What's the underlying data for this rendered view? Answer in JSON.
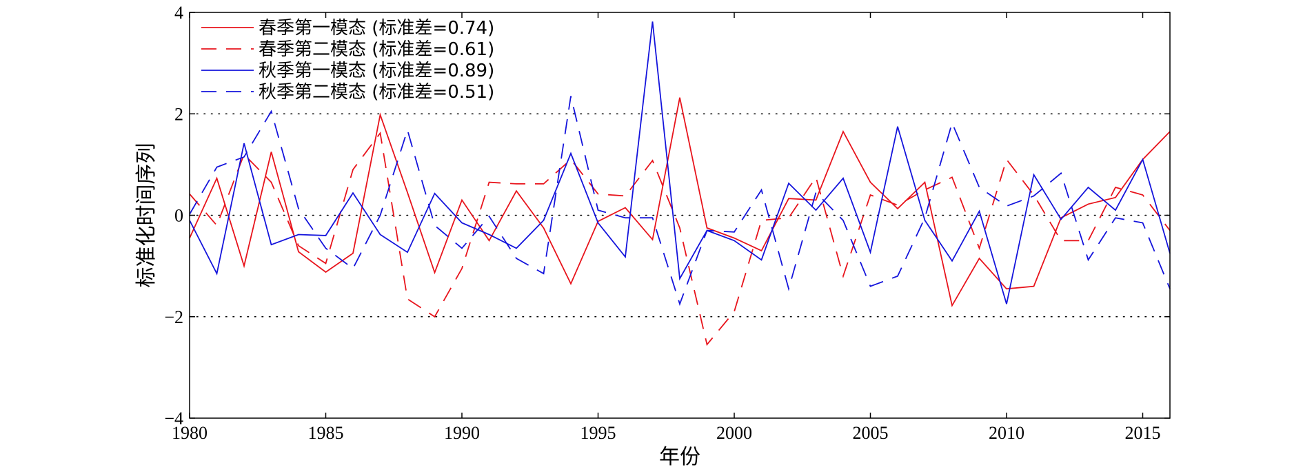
{
  "chart_data": {
    "type": "line",
    "title": "",
    "xlabel": "年份",
    "ylabel": "标准化时间序列",
    "xlim": [
      1980,
      2016
    ],
    "ylim": [
      -4,
      4
    ],
    "xticks": [
      1980,
      1985,
      1990,
      1995,
      2000,
      2005,
      2010,
      2015
    ],
    "yticks": [
      -4,
      -2,
      0,
      2,
      4
    ],
    "reference_lines": [
      -2,
      0,
      2
    ],
    "legend_position": "top-left",
    "x": [
      1980,
      1981,
      1982,
      1983,
      1984,
      1985,
      1986,
      1987,
      1988,
      1989,
      1990,
      1991,
      1992,
      1993,
      1994,
      1995,
      1996,
      1997,
      1998,
      1999,
      2000,
      2001,
      2002,
      2003,
      2004,
      2005,
      2006,
      2007,
      2008,
      2009,
      2010,
      2011,
      2012,
      2013,
      2014,
      2015,
      2016
    ],
    "series": [
      {
        "name": "春季第一模态 (标准差=0.74)",
        "color": "#e8141c",
        "style": "solid",
        "values": [
          -0.45,
          0.73,
          -1.0,
          1.25,
          -0.72,
          -1.12,
          -0.75,
          1.98,
          0.45,
          -1.13,
          0.3,
          -0.5,
          0.48,
          -0.25,
          -1.35,
          -0.12,
          0.15,
          -0.48,
          2.32,
          -0.25,
          -0.45,
          -0.7,
          0.33,
          0.3,
          1.65,
          0.65,
          0.13,
          0.65,
          -1.78,
          -0.85,
          -1.45,
          -1.4,
          -0.05,
          0.22,
          0.35,
          1.1,
          1.65
        ]
      },
      {
        "name": "春季第二模态 (标准差=0.61)",
        "color": "#e8141c",
        "style": "dashed",
        "values": [
          0.42,
          -0.2,
          1.2,
          0.65,
          -0.6,
          -0.95,
          0.9,
          1.62,
          -1.65,
          -2.0,
          -1.05,
          0.65,
          0.62,
          0.62,
          1.1,
          0.42,
          0.38,
          1.08,
          -0.25,
          -2.55,
          -1.9,
          -0.1,
          -0.05,
          0.75,
          -1.2,
          0.4,
          0.2,
          0.5,
          0.75,
          -0.65,
          1.1,
          0.4,
          -0.5,
          -0.5,
          0.55,
          0.4,
          -0.3
        ]
      },
      {
        "name": "秋季第一模态 (标准差=0.89)",
        "color": "#1414dc",
        "style": "solid",
        "values": [
          -0.1,
          -1.15,
          1.42,
          -0.58,
          -0.38,
          -0.4,
          0.44,
          -0.38,
          -0.73,
          0.43,
          -0.15,
          -0.38,
          -0.65,
          -0.1,
          1.22,
          -0.15,
          -0.82,
          3.82,
          -1.25,
          -0.3,
          -0.5,
          -0.88,
          0.63,
          0.1,
          0.73,
          -0.73,
          1.75,
          -0.1,
          -0.9,
          0.08,
          -1.75,
          0.8,
          -0.08,
          0.55,
          0.1,
          1.1,
          -0.75
        ]
      },
      {
        "name": "秋季第二模态 (标准差=0.51)",
        "color": "#1414dc",
        "style": "dashed",
        "values": [
          0.02,
          0.95,
          1.15,
          2.05,
          0.13,
          -0.65,
          -1.05,
          0.0,
          1.68,
          -0.2,
          -0.65,
          -0.02,
          -0.85,
          -1.15,
          2.35,
          0.1,
          -0.05,
          -0.05,
          -1.75,
          -0.3,
          -0.33,
          0.5,
          -1.45,
          0.45,
          -0.1,
          -1.4,
          -1.2,
          -0.05,
          1.82,
          0.55,
          0.18,
          0.38,
          0.83,
          -0.88,
          -0.05,
          -0.15,
          -1.45
        ]
      }
    ]
  }
}
